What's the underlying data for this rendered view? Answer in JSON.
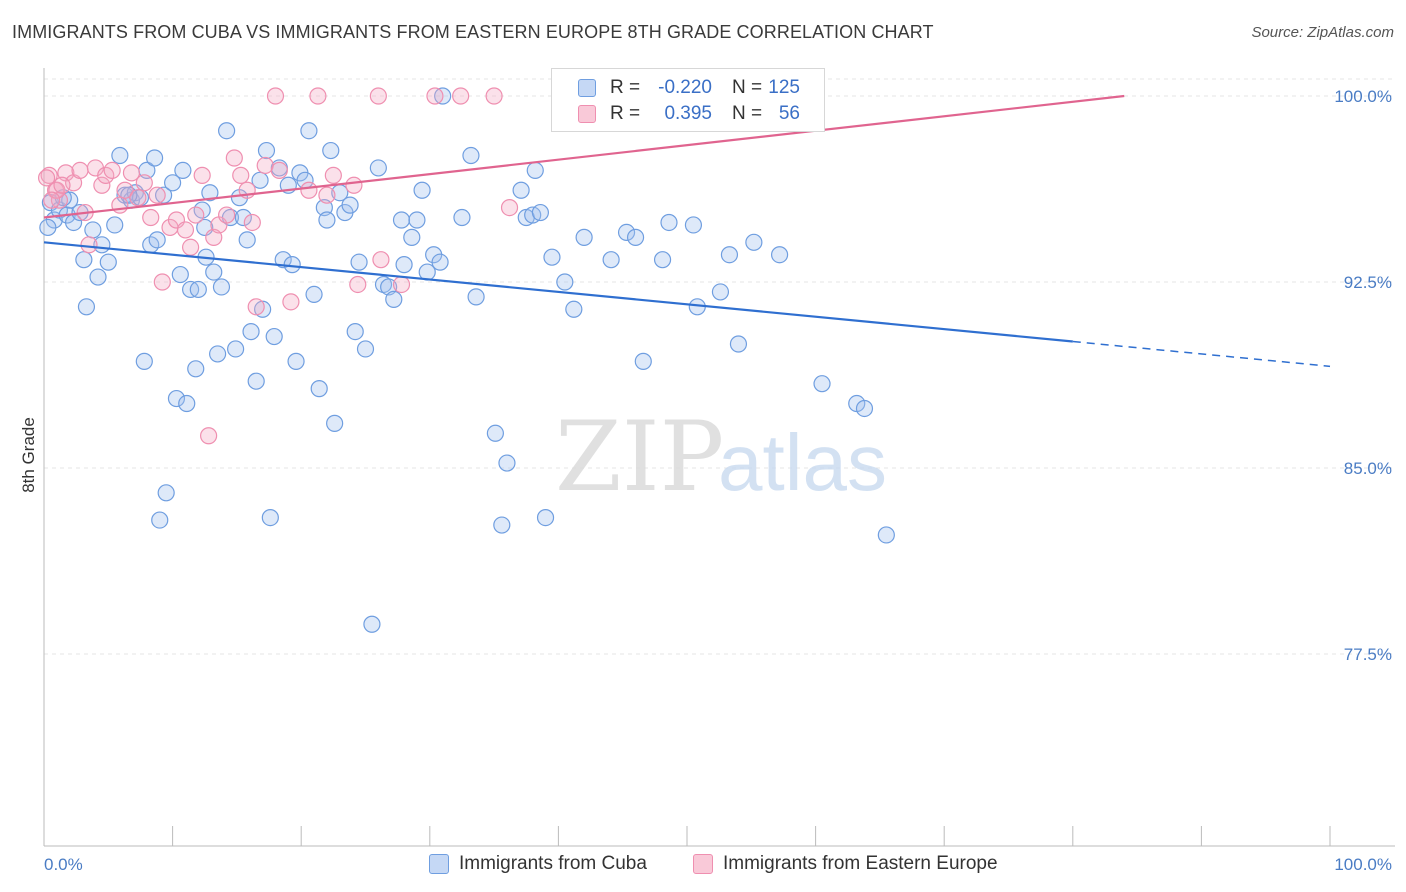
{
  "title": "IMMIGRANTS FROM CUBA VS IMMIGRANTS FROM EASTERN EUROPE 8TH GRADE CORRELATION CHART",
  "source": "Source: ZipAtlas.com",
  "watermark": {
    "zip": "ZIP",
    "atlas": "atlas"
  },
  "legend": {
    "r_label": "R =",
    "n_label": "N =",
    "rows": [
      {
        "r": "-0.220",
        "n": "125",
        "color": "#6f9ee0"
      },
      {
        "r": "0.395",
        "n": "56",
        "color": "#ef8fb0"
      }
    ]
  },
  "bottom_legend": [
    "Immigrants from Cuba",
    "Immigrants from Eastern Europe"
  ],
  "chart_data": {
    "type": "scatter",
    "xlabel": "",
    "ylabel": "8th Grade",
    "xlim": [
      0,
      100
    ],
    "ylim": [
      70,
      101.5
    ],
    "x_tick_labels": [
      "0.0%",
      "100.0%"
    ],
    "y_ticks": [
      100,
      92.5,
      85,
      77.5
    ],
    "y_tick_labels": [
      "100.0%",
      "92.5%",
      "85.0%",
      "77.5%"
    ],
    "grid": true,
    "series": [
      {
        "name": "Immigrants from Cuba",
        "color": "#6f9ee0",
        "trend": {
          "x0": 0,
          "y0": 94.1,
          "x1": 80,
          "y1": 90.1,
          "dash_to_x": 100,
          "dash_to_y": 89.1
        },
        "points": [
          [
            0.5,
            95.7
          ],
          [
            0.8,
            95.0
          ],
          [
            1.2,
            95.4
          ],
          [
            1.8,
            95.2
          ],
          [
            2.0,
            95.8
          ],
          [
            2.3,
            94.9
          ],
          [
            2.8,
            95.3
          ],
          [
            3.1,
            93.4
          ],
          [
            3.3,
            91.5
          ],
          [
            3.8,
            94.6
          ],
          [
            4.2,
            92.7
          ],
          [
            4.5,
            94.0
          ],
          [
            5.0,
            93.3
          ],
          [
            5.5,
            94.8
          ],
          [
            5.9,
            97.6
          ],
          [
            6.3,
            96.0
          ],
          [
            6.8,
            95.8
          ],
          [
            7.1,
            96.1
          ],
          [
            7.5,
            95.9
          ],
          [
            7.8,
            89.3
          ],
          [
            8.0,
            97.0
          ],
          [
            8.3,
            94.0
          ],
          [
            8.6,
            97.5
          ],
          [
            8.8,
            94.2
          ],
          [
            9.3,
            96.0
          ],
          [
            9.5,
            84.0
          ],
          [
            9.0,
            82.9
          ],
          [
            10.0,
            96.5
          ],
          [
            10.3,
            87.8
          ],
          [
            10.6,
            92.8
          ],
          [
            10.8,
            97.0
          ],
          [
            11.1,
            87.6
          ],
          [
            11.4,
            92.2
          ],
          [
            11.8,
            89.0
          ],
          [
            12.0,
            92.2
          ],
          [
            12.3,
            95.4
          ],
          [
            12.6,
            93.5
          ],
          [
            12.9,
            96.1
          ],
          [
            13.2,
            92.9
          ],
          [
            13.5,
            89.6
          ],
          [
            13.8,
            92.3
          ],
          [
            14.2,
            98.6
          ],
          [
            14.5,
            95.1
          ],
          [
            14.9,
            89.8
          ],
          [
            15.2,
            95.9
          ],
          [
            15.5,
            95.1
          ],
          [
            15.8,
            94.2
          ],
          [
            16.1,
            90.5
          ],
          [
            16.5,
            88.5
          ],
          [
            16.8,
            96.6
          ],
          [
            17.0,
            91.4
          ],
          [
            17.3,
            97.8
          ],
          [
            17.6,
            83.0
          ],
          [
            17.9,
            90.3
          ],
          [
            18.3,
            97.1
          ],
          [
            18.6,
            93.4
          ],
          [
            19.0,
            96.4
          ],
          [
            19.3,
            93.2
          ],
          [
            19.6,
            89.3
          ],
          [
            19.9,
            96.9
          ],
          [
            20.3,
            96.6
          ],
          [
            20.6,
            98.6
          ],
          [
            21.0,
            92.0
          ],
          [
            21.4,
            88.2
          ],
          [
            21.8,
            95.5
          ],
          [
            22.3,
            97.8
          ],
          [
            22.6,
            86.8
          ],
          [
            23.0,
            96.1
          ],
          [
            23.4,
            95.3
          ],
          [
            23.8,
            95.6
          ],
          [
            24.2,
            90.5
          ],
          [
            24.5,
            93.3
          ],
          [
            25.0,
            89.8
          ],
          [
            25.5,
            78.7
          ],
          [
            26.0,
            97.1
          ],
          [
            26.4,
            92.4
          ],
          [
            26.8,
            92.3
          ],
          [
            27.2,
            91.8
          ],
          [
            27.8,
            95.0
          ],
          [
            28.6,
            94.3
          ],
          [
            29.0,
            95.0
          ],
          [
            29.4,
            96.2
          ],
          [
            29.8,
            92.9
          ],
          [
            30.3,
            93.6
          ],
          [
            30.8,
            93.3
          ],
          [
            31.0,
            100.0
          ],
          [
            32.5,
            95.1
          ],
          [
            33.2,
            97.6
          ],
          [
            33.6,
            91.9
          ],
          [
            35.1,
            86.4
          ],
          [
            35.6,
            82.7
          ],
          [
            36.0,
            85.2
          ],
          [
            37.1,
            96.2
          ],
          [
            37.5,
            95.1
          ],
          [
            38.0,
            95.2
          ],
          [
            38.6,
            95.3
          ],
          [
            39.0,
            83.0
          ],
          [
            39.5,
            93.5
          ],
          [
            40.5,
            92.5
          ],
          [
            41.2,
            91.4
          ],
          [
            42.0,
            94.3
          ],
          [
            44.1,
            93.4
          ],
          [
            45.3,
            94.5
          ],
          [
            46.0,
            94.3
          ],
          [
            46.6,
            89.3
          ],
          [
            48.1,
            93.4
          ],
          [
            48.6,
            94.9
          ],
          [
            50.5,
            94.8
          ],
          [
            50.8,
            91.5
          ],
          [
            52.6,
            92.1
          ],
          [
            53.3,
            93.6
          ],
          [
            54.0,
            90.0
          ],
          [
            55.2,
            94.1
          ],
          [
            57.2,
            93.6
          ],
          [
            60.5,
            88.4
          ],
          [
            63.2,
            87.6
          ],
          [
            63.8,
            87.4
          ],
          [
            65.5,
            82.3
          ],
          [
            0.3,
            94.7
          ],
          [
            1.5,
            95.9
          ],
          [
            6.6,
            96.0
          ],
          [
            12.5,
            94.7
          ],
          [
            22.0,
            95.0
          ],
          [
            28.0,
            93.2
          ],
          [
            38.2,
            97.0
          ]
        ]
      },
      {
        "name": "Immigrants from Eastern Europe",
        "color": "#ef8fb0",
        "trend": {
          "x0": 0,
          "y0": 95.1,
          "x1": 84,
          "y1": 100.0
        },
        "points": [
          [
            0.4,
            96.8
          ],
          [
            0.9,
            96.2
          ],
          [
            1.2,
            95.8
          ],
          [
            1.7,
            96.9
          ],
          [
            2.3,
            96.5
          ],
          [
            2.8,
            97.0
          ],
          [
            3.2,
            95.3
          ],
          [
            3.5,
            94.0
          ],
          [
            4.0,
            97.1
          ],
          [
            4.5,
            96.4
          ],
          [
            4.8,
            96.8
          ],
          [
            5.3,
            97.0
          ],
          [
            5.9,
            95.6
          ],
          [
            6.3,
            96.2
          ],
          [
            6.8,
            96.9
          ],
          [
            7.3,
            95.9
          ],
          [
            7.8,
            96.5
          ],
          [
            8.3,
            95.1
          ],
          [
            8.8,
            96.0
          ],
          [
            9.2,
            92.5
          ],
          [
            9.8,
            94.7
          ],
          [
            10.3,
            95.0
          ],
          [
            11.0,
            94.6
          ],
          [
            11.4,
            93.9
          ],
          [
            11.8,
            95.2
          ],
          [
            12.3,
            96.8
          ],
          [
            12.8,
            86.3
          ],
          [
            13.2,
            94.3
          ],
          [
            13.6,
            94.8
          ],
          [
            14.2,
            95.2
          ],
          [
            14.8,
            97.5
          ],
          [
            15.3,
            96.8
          ],
          [
            15.8,
            96.2
          ],
          [
            16.2,
            94.9
          ],
          [
            16.5,
            91.5
          ],
          [
            17.2,
            97.2
          ],
          [
            18.3,
            97.0
          ],
          [
            19.2,
            91.7
          ],
          [
            20.6,
            96.2
          ],
          [
            22.0,
            96.0
          ],
          [
            22.5,
            96.8
          ],
          [
            24.1,
            96.4
          ],
          [
            24.4,
            92.4
          ],
          [
            26.2,
            93.4
          ],
          [
            27.8,
            92.4
          ],
          [
            30.4,
            100.0
          ],
          [
            32.4,
            100.0
          ],
          [
            35.0,
            100.0
          ],
          [
            36.2,
            95.5
          ],
          [
            18.0,
            100.0
          ],
          [
            21.3,
            100.0
          ],
          [
            26.0,
            100.0
          ],
          [
            0.2,
            96.7
          ],
          [
            1.0,
            96.2
          ],
          [
            0.6,
            95.8
          ],
          [
            1.4,
            96.4
          ]
        ]
      }
    ]
  }
}
